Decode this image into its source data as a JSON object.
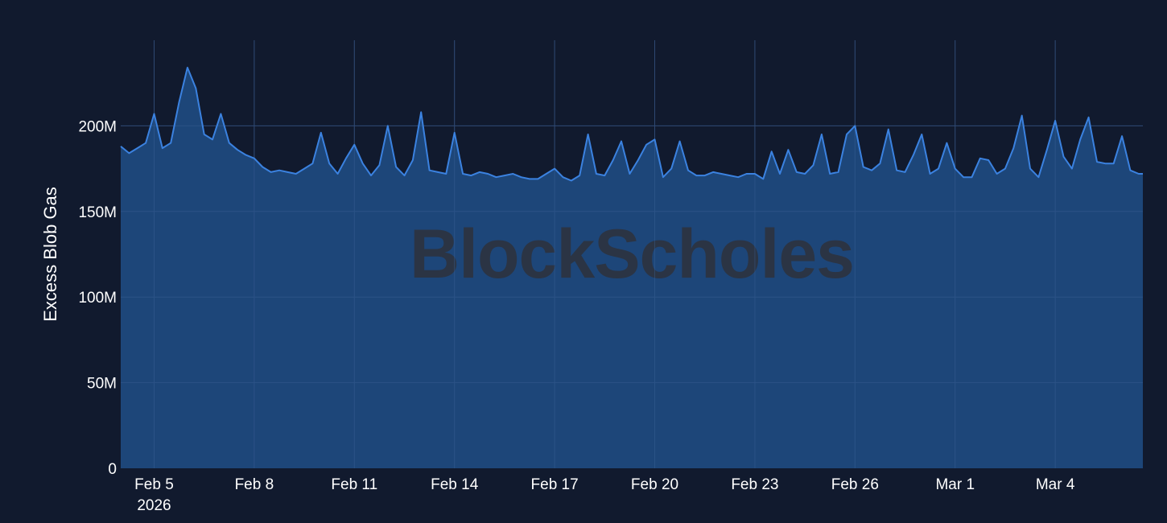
{
  "chart_data": {
    "type": "area",
    "title": "",
    "xlabel": "",
    "ylabel": "Excess Blob Gas",
    "ylim": [
      0,
      250000000
    ],
    "xlim": [
      "2026-02-04T00:00",
      "2026-03-06T15:00"
    ],
    "y_ticks": [
      {
        "value": 0,
        "label": "0"
      },
      {
        "value": 50000000,
        "label": "50M"
      },
      {
        "value": 100000000,
        "label": "100M"
      },
      {
        "value": 150000000,
        "label": "150M"
      },
      {
        "value": 200000000,
        "label": "200M"
      }
    ],
    "x_ticks": [
      {
        "value": "2026-02-05",
        "label": "Feb 5",
        "sublabel": "2026"
      },
      {
        "value": "2026-02-08",
        "label": "Feb 8"
      },
      {
        "value": "2026-02-11",
        "label": "Feb 11"
      },
      {
        "value": "2026-02-14",
        "label": "Feb 14"
      },
      {
        "value": "2026-02-17",
        "label": "Feb 17"
      },
      {
        "value": "2026-02-20",
        "label": "Feb 20"
      },
      {
        "value": "2026-02-23",
        "label": "Feb 23"
      },
      {
        "value": "2026-02-26",
        "label": "Feb 26"
      },
      {
        "value": "2026-03-01",
        "label": "Mar 1"
      },
      {
        "value": "2026-03-04",
        "label": "Mar 4"
      }
    ],
    "grid": true,
    "legend": "none",
    "colors": {
      "line": "#3b82e0",
      "fill": "#1e4a80",
      "grid": "#26385a",
      "background": "#111a2e"
    },
    "series": [
      {
        "x": [
          "2026-02-04T00:00",
          "2026-02-04T06:00",
          "2026-02-04T12:00",
          "2026-02-04T18:00",
          "2026-02-05T00:00",
          "2026-02-05T06:00",
          "2026-02-05T12:00",
          "2026-02-05T18:00",
          "2026-02-06T00:00",
          "2026-02-06T06:00",
          "2026-02-06T12:00",
          "2026-02-06T18:00",
          "2026-02-07T00:00",
          "2026-02-07T06:00",
          "2026-02-07T12:00",
          "2026-02-07T18:00",
          "2026-02-08T00:00",
          "2026-02-08T06:00",
          "2026-02-08T12:00",
          "2026-02-08T18:00",
          "2026-02-09T00:00",
          "2026-02-09T06:00",
          "2026-02-09T12:00",
          "2026-02-09T18:00",
          "2026-02-10T00:00",
          "2026-02-10T06:00",
          "2026-02-10T12:00",
          "2026-02-10T18:00",
          "2026-02-11T00:00",
          "2026-02-11T06:00",
          "2026-02-11T12:00",
          "2026-02-11T18:00",
          "2026-02-12T00:00",
          "2026-02-12T06:00",
          "2026-02-12T12:00",
          "2026-02-12T18:00",
          "2026-02-13T00:00",
          "2026-02-13T06:00",
          "2026-02-13T12:00",
          "2026-02-13T18:00",
          "2026-02-14T00:00",
          "2026-02-14T06:00",
          "2026-02-14T12:00",
          "2026-02-14T18:00",
          "2026-02-15T00:00",
          "2026-02-15T06:00",
          "2026-02-15T12:00",
          "2026-02-15T18:00",
          "2026-02-16T00:00",
          "2026-02-16T06:00",
          "2026-02-16T12:00",
          "2026-02-16T18:00",
          "2026-02-17T00:00",
          "2026-02-17T06:00",
          "2026-02-17T12:00",
          "2026-02-17T18:00",
          "2026-02-18T00:00",
          "2026-02-18T06:00",
          "2026-02-18T12:00",
          "2026-02-18T18:00",
          "2026-02-19T00:00",
          "2026-02-19T06:00",
          "2026-02-19T12:00",
          "2026-02-19T18:00",
          "2026-02-20T00:00",
          "2026-02-20T06:00",
          "2026-02-20T12:00",
          "2026-02-20T18:00",
          "2026-02-21T00:00",
          "2026-02-21T06:00",
          "2026-02-21T12:00",
          "2026-02-21T18:00",
          "2026-02-22T00:00",
          "2026-02-22T06:00",
          "2026-02-22T12:00",
          "2026-02-22T18:00",
          "2026-02-23T00:00",
          "2026-02-23T06:00",
          "2026-02-23T12:00",
          "2026-02-23T18:00",
          "2026-02-24T00:00",
          "2026-02-24T06:00",
          "2026-02-24T12:00",
          "2026-02-24T18:00",
          "2026-02-25T00:00",
          "2026-02-25T06:00",
          "2026-02-25T12:00",
          "2026-02-25T18:00",
          "2026-02-26T00:00",
          "2026-02-26T06:00",
          "2026-02-26T12:00",
          "2026-02-26T18:00",
          "2026-02-27T00:00",
          "2026-02-27T06:00",
          "2026-02-27T12:00",
          "2026-02-27T18:00",
          "2026-02-28T00:00",
          "2026-02-28T06:00",
          "2026-02-28T12:00",
          "2026-02-28T18:00",
          "2026-03-01T00:00",
          "2026-03-01T06:00",
          "2026-03-01T12:00",
          "2026-03-01T18:00",
          "2026-03-02T00:00",
          "2026-03-02T06:00",
          "2026-03-02T12:00",
          "2026-03-02T18:00",
          "2026-03-03T00:00",
          "2026-03-03T06:00",
          "2026-03-03T12:00",
          "2026-03-03T18:00",
          "2026-03-04T00:00",
          "2026-03-04T06:00",
          "2026-03-04T12:00",
          "2026-03-04T18:00",
          "2026-03-05T00:00",
          "2026-03-05T06:00",
          "2026-03-05T12:00",
          "2026-03-05T18:00",
          "2026-03-06T00:00",
          "2026-03-06T06:00",
          "2026-03-06T12:00",
          "2026-03-06T15:00"
        ],
        "y": [
          188000000,
          184000000,
          187000000,
          190000000,
          207000000,
          187000000,
          190000000,
          214000000,
          234000000,
          222000000,
          195000000,
          192000000,
          207000000,
          190000000,
          186000000,
          183000000,
          181000000,
          176000000,
          173000000,
          174000000,
          173000000,
          172000000,
          175000000,
          178000000,
          196000000,
          178000000,
          172000000,
          181000000,
          189000000,
          178000000,
          171000000,
          177000000,
          200000000,
          176000000,
          171000000,
          180000000,
          208000000,
          174000000,
          173000000,
          172000000,
          196000000,
          172000000,
          171000000,
          173000000,
          172000000,
          170000000,
          171000000,
          172000000,
          170000000,
          169000000,
          169000000,
          172000000,
          175000000,
          170000000,
          168000000,
          171000000,
          195000000,
          172000000,
          171000000,
          180000000,
          191000000,
          172000000,
          180000000,
          189000000,
          192000000,
          170000000,
          175000000,
          191000000,
          174000000,
          171000000,
          171000000,
          173000000,
          172000000,
          171000000,
          170000000,
          172000000,
          172000000,
          169000000,
          185000000,
          172000000,
          186000000,
          173000000,
          172000000,
          177000000,
          195000000,
          172000000,
          173000000,
          195000000,
          200000000,
          176000000,
          174000000,
          178000000,
          198000000,
          174000000,
          173000000,
          183000000,
          195000000,
          172000000,
          175000000,
          190000000,
          175000000,
          170000000,
          170000000,
          181000000,
          180000000,
          172000000,
          175000000,
          187000000,
          206000000,
          175000000,
          170000000,
          186000000,
          203000000,
          182000000,
          175000000,
          192000000,
          205000000,
          179000000,
          178000000,
          178000000,
          194000000,
          174000000,
          172000000,
          172000000
        ]
      }
    ]
  },
  "watermark": {
    "text": "BlockScholes"
  }
}
